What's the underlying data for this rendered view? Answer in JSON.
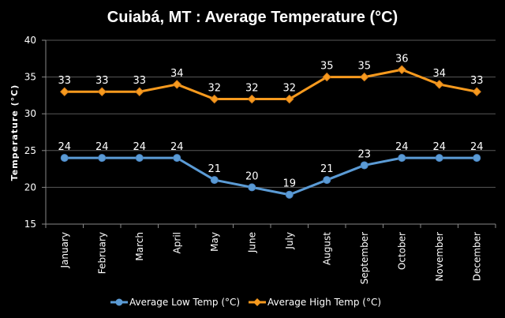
{
  "chart_data": {
    "type": "line",
    "title": "Cuiabá, MT : Average Temperature (°C)",
    "xlabel": "",
    "ylabel": "Temperature (°C)",
    "ylim": [
      15,
      40
    ],
    "yticks": [
      15,
      20,
      25,
      30,
      35,
      40
    ],
    "grid": true,
    "legend_position": "bottom",
    "categories": [
      "January",
      "February",
      "March",
      "April",
      "May",
      "June",
      "July",
      "August",
      "September",
      "October",
      "November",
      "December"
    ],
    "series": [
      {
        "name": "Average Low Temp (°C)",
        "color": "#5b9bd5",
        "marker": "circle",
        "values": [
          24,
          24,
          24,
          24,
          21,
          20,
          19,
          21,
          23,
          24,
          24,
          24
        ]
      },
      {
        "name": "Average High Temp (°C)",
        "color": "#f79a1e",
        "marker": "diamond",
        "values": [
          33,
          33,
          33,
          34,
          32,
          32,
          32,
          35,
          35,
          36,
          34,
          33
        ]
      }
    ]
  }
}
